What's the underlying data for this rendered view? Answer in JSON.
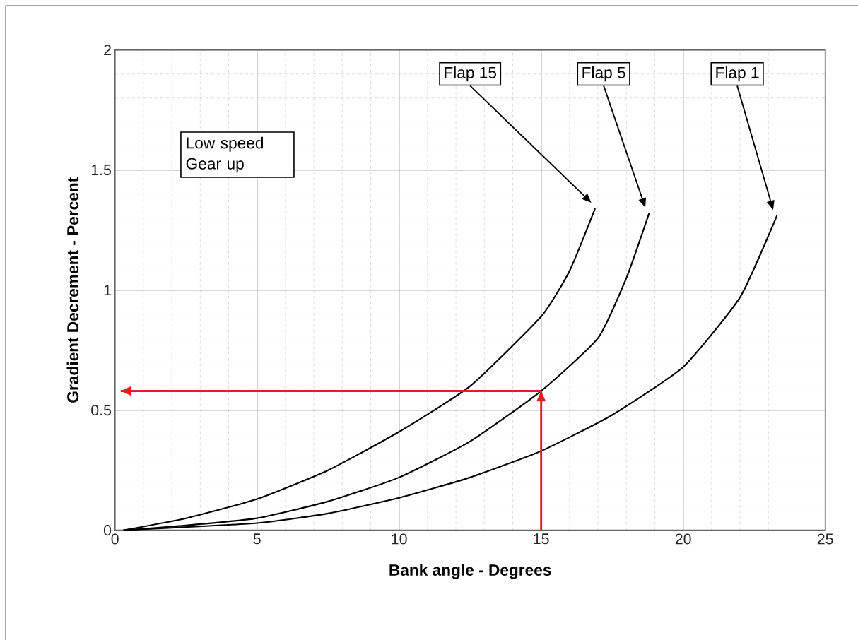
{
  "chart_data": {
    "type": "line",
    "xlabel": "Bank angle - Degrees",
    "ylabel": "Gradient Decrement - Percent",
    "xlim": [
      0,
      25
    ],
    "ylim": [
      0,
      2
    ],
    "xticks": [
      0,
      5,
      10,
      15,
      20,
      25
    ],
    "yticks": [
      0,
      0.5,
      1,
      1.5,
      2
    ],
    "grid": true,
    "marker": "none",
    "line_style": "solid",
    "annotations": [
      "Low speed Gear up"
    ],
    "series": [
      {
        "name": "Flap 15",
        "color": "#000000",
        "x": [
          0.3,
          2.5,
          5,
          7.5,
          10,
          12.5,
          15,
          16,
          16.9
        ],
        "values": [
          0,
          0.05,
          0.13,
          0.25,
          0.41,
          0.6,
          0.89,
          1.08,
          1.34
        ]
      },
      {
        "name": "Flap 5",
        "color": "#000000",
        "x": [
          0.3,
          2.5,
          5,
          7.5,
          10,
          12.5,
          15,
          17,
          18,
          18.8
        ],
        "values": [
          0,
          0.02,
          0.05,
          0.12,
          0.22,
          0.37,
          0.58,
          0.8,
          1.05,
          1.32
        ]
      },
      {
        "name": "Flap  1",
        "color": "#000000",
        "x": [
          0.3,
          5,
          7.5,
          10,
          12.5,
          15,
          17.5,
          20,
          22,
          23.3
        ],
        "values": [
          0,
          0.03,
          0.07,
          0.135,
          0.22,
          0.33,
          0.48,
          0.68,
          0.97,
          1.31
        ]
      },
      {
        "color": "#e02020",
        "x": [
          15,
          0.2
        ],
        "values": [
          0.58,
          0.58
        ]
      },
      {
        "color": "#e02020",
        "x": [
          15,
          15
        ],
        "values": [
          0,
          0.58
        ]
      }
    ]
  }
}
